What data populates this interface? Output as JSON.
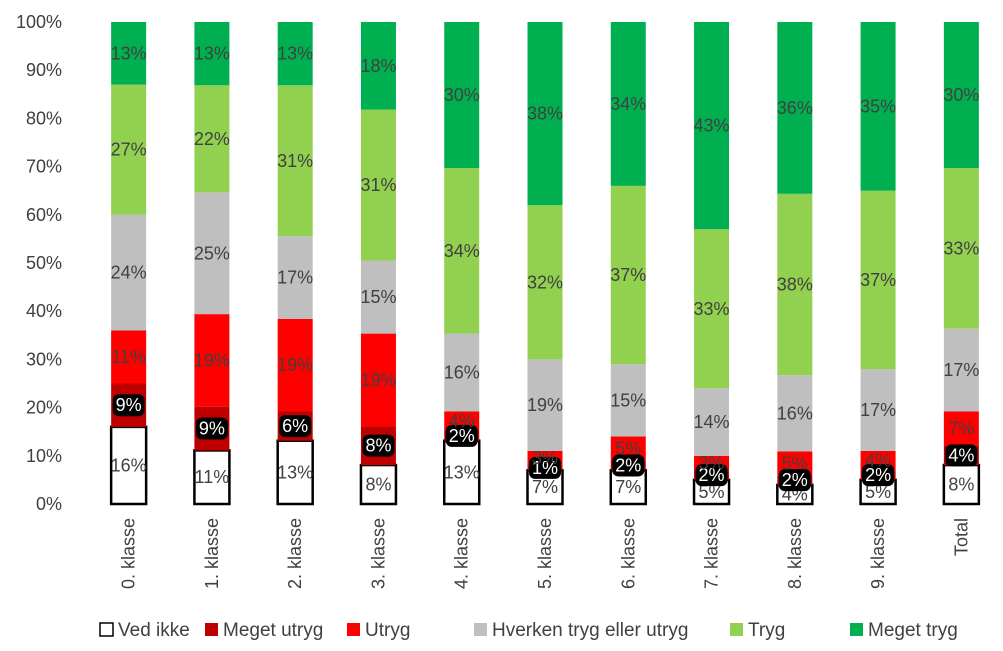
{
  "chart_data": {
    "type": "bar",
    "stacked": true,
    "percent": true,
    "title": "",
    "xlabel": "",
    "ylabel": "",
    "ylim": [
      0,
      100
    ],
    "yticks": [
      "0%",
      "10%",
      "20%",
      "30%",
      "40%",
      "50%",
      "60%",
      "70%",
      "80%",
      "90%",
      "100%"
    ],
    "grid": false,
    "legend_position": "bottom",
    "categories": [
      "0. klasse",
      "1. klasse",
      "2. klasse",
      "3. klasse",
      "4. klasse",
      "5. klasse",
      "6. klasse",
      "7. klasse",
      "8. klasse",
      "9. klasse",
      "Total"
    ],
    "series": [
      {
        "name": "Ved ikke",
        "color": "#ffffff",
        "border": "#000000",
        "label_color": "#404040",
        "values": [
          16,
          11,
          13,
          8,
          13,
          7,
          7,
          5,
          4,
          5,
          8
        ],
        "labels": [
          "16%",
          "11%",
          "13%",
          "8%",
          "13%",
          "7%",
          "7%",
          "5%",
          "4%",
          "5%",
          "8%"
        ]
      },
      {
        "name": "Meget utryg",
        "color": "#c00000",
        "label_color": "#ffffff",
        "values": [
          9,
          9,
          6,
          8,
          2,
          1,
          2,
          2,
          2,
          2,
          4
        ],
        "labels": [
          "9%",
          "9%",
          "6%",
          "8%",
          "2%",
          "1%",
          "2%",
          "2%",
          "2%",
          "2%",
          "4%"
        ]
      },
      {
        "name": "Utryg",
        "color": "#ff0000",
        "label_color": "#404040",
        "values": [
          11,
          19,
          19,
          19,
          4,
          3,
          5,
          3,
          5,
          4,
          7
        ],
        "labels": [
          "11%",
          "19%",
          "19%",
          "19%",
          "4%",
          "3%",
          "5%",
          "3%",
          "5%",
          "4%",
          "7%"
        ]
      },
      {
        "name": "Hverken tryg eller utryg",
        "color": "#bfbfbf",
        "label_color": "#404040",
        "values": [
          24,
          25,
          17,
          15,
          16,
          19,
          15,
          14,
          16,
          17,
          17
        ],
        "labels": [
          "24%",
          "25%",
          "17%",
          "15%",
          "16%",
          "19%",
          "15%",
          "14%",
          "16%",
          "17%",
          "17%"
        ]
      },
      {
        "name": "Tryg",
        "color": "#92d050",
        "label_color": "#404040",
        "values": [
          27,
          22,
          31,
          31,
          34,
          32,
          37,
          33,
          38,
          37,
          33
        ],
        "labels": [
          "27%",
          "22%",
          "31%",
          "31%",
          "34%",
          "32%",
          "37%",
          "33%",
          "38%",
          "37%",
          "33%"
        ]
      },
      {
        "name": "Meget tryg",
        "color": "#00b050",
        "label_color": "#404040",
        "values": [
          13,
          13,
          13,
          18,
          30,
          38,
          34,
          43,
          36,
          35,
          30
        ],
        "labels": [
          "13%",
          "13%",
          "13%",
          "18%",
          "30%",
          "38%",
          "34%",
          "43%",
          "36%",
          "35%",
          "30%"
        ]
      }
    ]
  }
}
